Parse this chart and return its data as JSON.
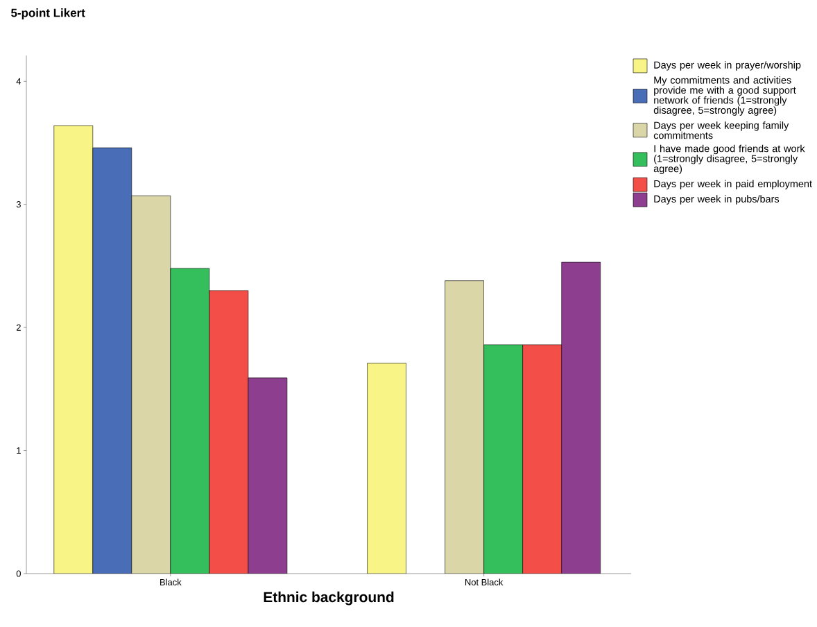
{
  "chart_data": {
    "type": "bar",
    "title": "5-point Likert",
    "xlabel": "Ethnic background",
    "categories": [
      "Black",
      "Not Black"
    ],
    "series": [
      {
        "name": "Days per week in prayer/worship",
        "color": "#f8f485",
        "values": [
          3.64,
          1.71
        ]
      },
      {
        "name": "My commitments and activities provide me with a good support network of friends (1=strongly disagree, 5=strongly agree)",
        "color": "#4a6db8",
        "values": [
          3.46,
          null
        ]
      },
      {
        "name": "Days per week keeping family commitments",
        "color": "#dbd6a8",
        "values": [
          3.07,
          2.38
        ]
      },
      {
        "name": "I have made good friends at work (1=strongly disagree, 5=strongly agree)",
        "color": "#35bf5c",
        "values": [
          2.48,
          1.86
        ]
      },
      {
        "name": "Days per week in paid employment",
        "color": "#f44e48",
        "values": [
          2.3,
          1.86
        ]
      },
      {
        "name": "Days per week in pubs/bars",
        "color": "#8e3e8f",
        "values": [
          1.59,
          2.53
        ]
      }
    ],
    "ylim": [
      0,
      4.21
    ],
    "yticks": [
      0,
      1,
      2,
      3,
      4
    ],
    "legend": "right",
    "grid": false
  }
}
